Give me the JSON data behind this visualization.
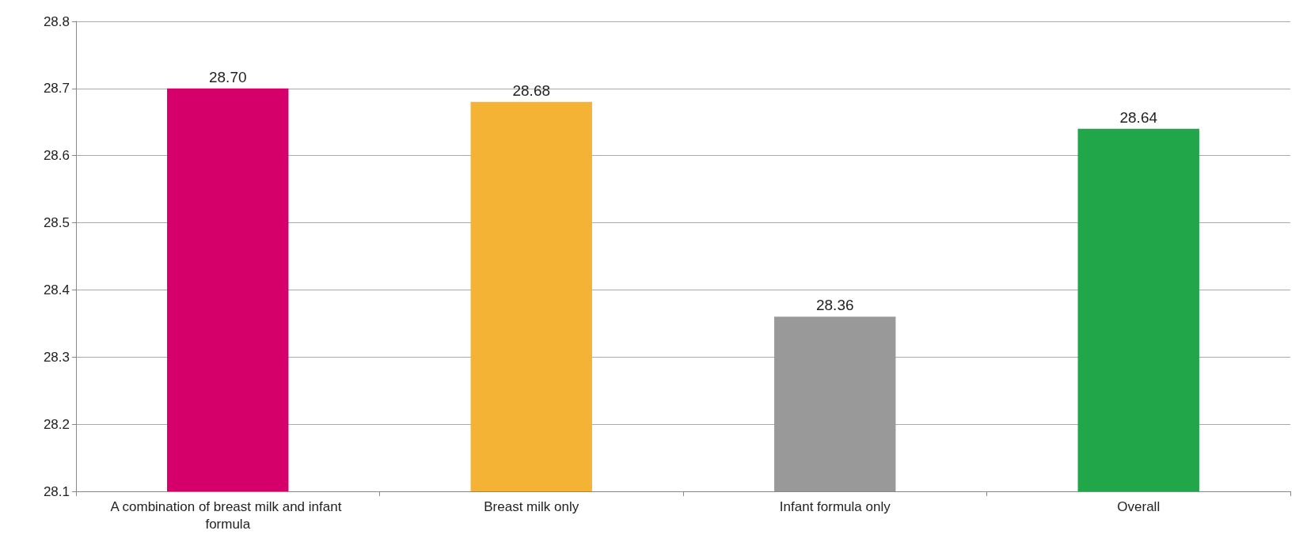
{
  "chart_data": {
    "type": "bar",
    "categories": [
      "A combination of breast milk and infant formula",
      "Breast milk only",
      "Infant formula only",
      "Overall"
    ],
    "values": [
      28.7,
      28.68,
      28.36,
      28.64
    ],
    "colors": [
      "#d6006b",
      "#f5b335",
      "#999999",
      "#22a64a"
    ],
    "value_labels": [
      "28.70",
      "28.68",
      "28.36",
      "28.64"
    ],
    "ylim": [
      28.1,
      28.8
    ],
    "yticks": [
      28.1,
      28.2,
      28.3,
      28.4,
      28.5,
      28.6,
      28.7,
      28.8
    ],
    "grid": "y"
  }
}
